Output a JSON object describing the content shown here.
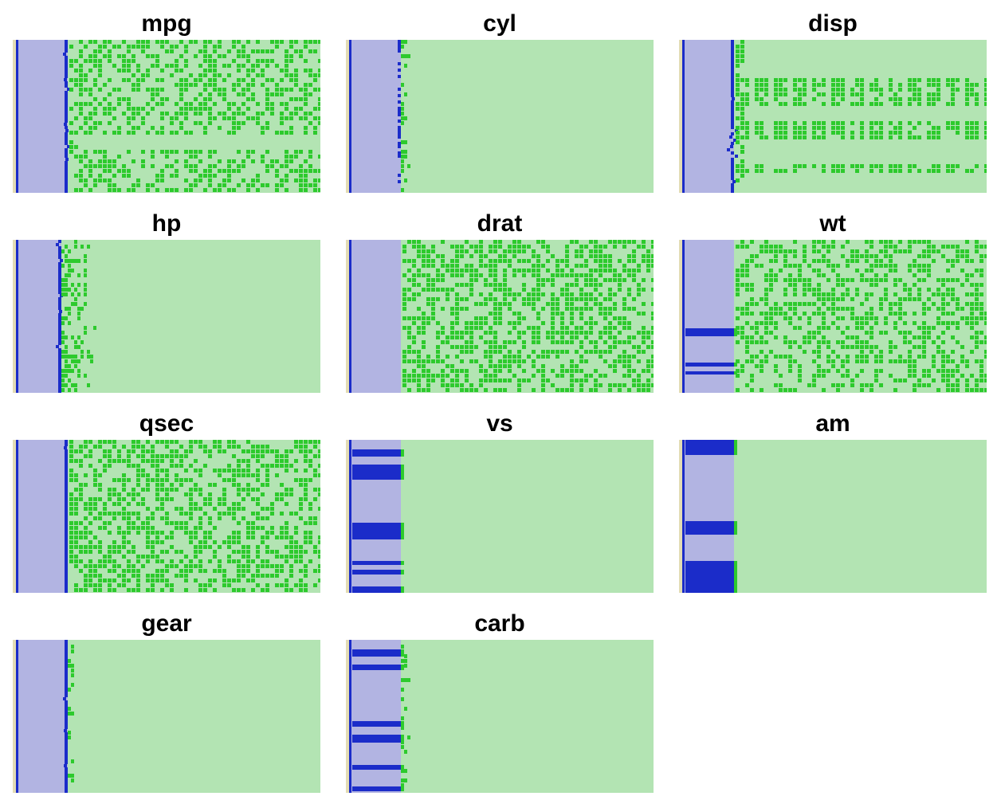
{
  "chart_data": {
    "type": "heatmap",
    "description_free": true,
    "colors": {
      "background": "#ffffff",
      "left_margin": "#e3dcb4",
      "left_fill": "#b2b4e2",
      "left_mark": "#1b2cc9",
      "right_fill": "#b3e4b3",
      "right_mark": "#2dca2d"
    },
    "panels": [
      {
        "title": "mpg",
        "split": 0.17,
        "boundary": "line",
        "blue_rows": [],
        "green": {
          "mode": "zig",
          "rows": [
            [
              0.0,
              0.62
            ],
            [
              0.69,
              1.0
            ]
          ],
          "density": 0.62
        },
        "edge_jitter": 0.03
      },
      {
        "title": "cyl",
        "split": 0.17,
        "boundary": "sparse",
        "blue_rows": [],
        "green": {
          "mode": "edge",
          "density": 0.4
        },
        "edge_jitter": 0.02
      },
      {
        "title": "disp",
        "split": 0.17,
        "boundary": "line",
        "blue_rows": [],
        "green": {
          "mode": "bands",
          "rows": [
            [
              0.22,
              0.43
            ],
            [
              0.51,
              0.63
            ],
            [
              0.8,
              0.86
            ]
          ],
          "density": 0.55
        },
        "edge_jitter": 0.06
      },
      {
        "title": "hp",
        "split": 0.15,
        "boundary": "line",
        "blue_rows": [],
        "green": {
          "mode": "edge",
          "density": 0.55,
          "width": 0.12
        },
        "edge_jitter": 0.04
      },
      {
        "title": "drat",
        "split": 0.17,
        "boundary": "none",
        "blue_rows": [],
        "green": {
          "mode": "noise",
          "rows": [
            [
              0.0,
              1.0
            ]
          ],
          "density": 0.52
        },
        "edge_jitter": 0.0
      },
      {
        "title": "wt",
        "split": 0.17,
        "boundary": "none",
        "blue_rows": [
          [
            0.58,
            0.63
          ],
          [
            0.8,
            0.83
          ],
          [
            0.86,
            0.88
          ]
        ],
        "green": {
          "mode": "noise",
          "rows": [
            [
              0.0,
              1.0
            ]
          ],
          "density": 0.45
        },
        "edge_jitter": 0.0
      },
      {
        "title": "qsec",
        "split": 0.17,
        "boundary": "line",
        "blue_rows": [],
        "green": {
          "mode": "noise",
          "rows": [
            [
              0.0,
              1.0
            ]
          ],
          "density": 0.5
        },
        "edge_jitter": 0.02
      },
      {
        "title": "vs",
        "split": 0.17,
        "boundary": "none",
        "blue_rows": [
          [
            0.06,
            0.11
          ],
          [
            0.16,
            0.26
          ],
          [
            0.54,
            0.65
          ],
          [
            0.79,
            0.82
          ],
          [
            0.85,
            0.88
          ],
          [
            0.96,
            1.0
          ]
        ],
        "green": {
          "mode": "none"
        },
        "edge_jitter": 0.0
      },
      {
        "title": "am",
        "split": 0.17,
        "boundary": "none",
        "blue_rows": [
          [
            0.0,
            0.1
          ],
          [
            0.53,
            0.62
          ],
          [
            0.79,
            1.0
          ]
        ],
        "green": {
          "mode": "none"
        },
        "edge_jitter": 0.0
      },
      {
        "title": "gear",
        "split": 0.17,
        "boundary": "line",
        "blue_rows": [],
        "green": {
          "mode": "edge",
          "density": 0.3
        },
        "edge_jitter": 0.02
      },
      {
        "title": "carb",
        "split": 0.17,
        "boundary": "none",
        "blue_rows": [
          [
            0.06,
            0.11
          ],
          [
            0.16,
            0.2
          ],
          [
            0.53,
            0.57
          ],
          [
            0.62,
            0.67
          ],
          [
            0.82,
            0.85
          ],
          [
            0.96,
            0.99
          ]
        ],
        "green": {
          "mode": "edge",
          "density": 0.3
        },
        "edge_jitter": 0.02
      }
    ]
  }
}
